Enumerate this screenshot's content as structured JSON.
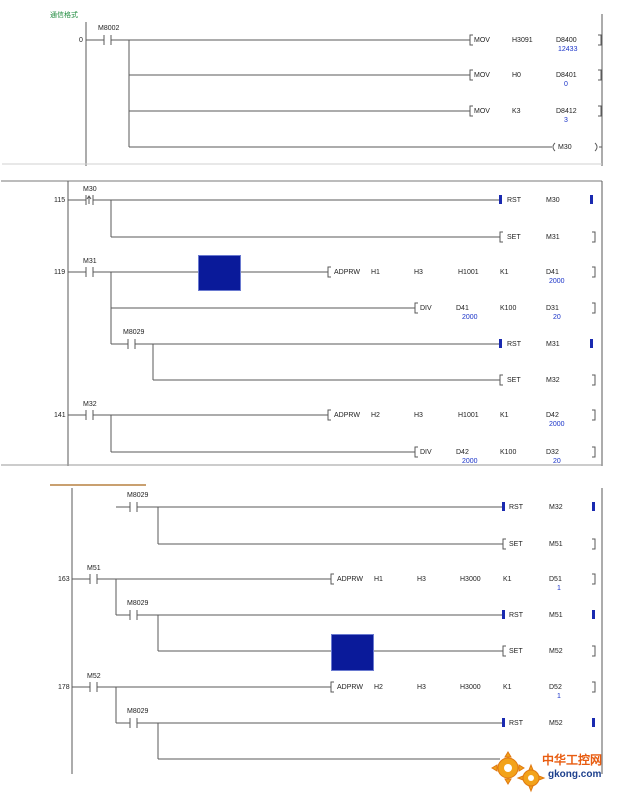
{
  "panel1": {
    "header": "通信格式",
    "step": "0",
    "contact": "M8002",
    "rows": [
      {
        "op": "MOV",
        "a": "H3091",
        "b": "D8400",
        "val": "12433"
      },
      {
        "op": "MOV",
        "a": "H0",
        "b": "D8401",
        "val": "0"
      },
      {
        "op": "MOV",
        "a": "K3",
        "b": "D8412",
        "val": "3"
      }
    ],
    "coil": "M30"
  },
  "panel2": {
    "steps": [
      "115",
      "119",
      "141"
    ],
    "contacts": {
      "m30": "M30",
      "m31": "M31",
      "m8029": "M8029",
      "m32": "M32"
    },
    "rows": {
      "rst_m30": {
        "op": "RST",
        "dev": "M30"
      },
      "set_m31": {
        "op": "SET",
        "dev": "M31"
      },
      "adprw1": {
        "op": "ADPRW",
        "a": "H1",
        "b": "H3",
        "c": "H1001",
        "d": "K1",
        "e": "D41",
        "val": "2000"
      },
      "div1": {
        "op": "DIV",
        "a": "D41",
        "a_val": "2000",
        "b": "K100",
        "c": "D31",
        "c_val": "20"
      },
      "rst_m31": {
        "op": "RST",
        "dev": "M31"
      },
      "set_m32": {
        "op": "SET",
        "dev": "M32"
      },
      "adprw2": {
        "op": "ADPRW",
        "a": "H2",
        "b": "H3",
        "c": "H1001",
        "d": "K1",
        "e": "D42",
        "val": "2000"
      },
      "div2": {
        "op": "DIV",
        "a": "D42",
        "a_val": "2000",
        "b": "K100",
        "c": "D32",
        "c_val": "20"
      }
    }
  },
  "panel3": {
    "steps": [
      "163",
      "178"
    ],
    "contacts": {
      "m8029": "M8029",
      "m51": "M51",
      "m52": "M52"
    },
    "rows": {
      "rst_m32": {
        "op": "RST",
        "dev": "M32"
      },
      "set_m51": {
        "op": "SET",
        "dev": "M51"
      },
      "adprw3": {
        "op": "ADPRW",
        "a": "H1",
        "b": "H3",
        "c": "H3000",
        "d": "K1",
        "e": "D51",
        "val": "1"
      },
      "rst_m51": {
        "op": "RST",
        "dev": "M51"
      },
      "set_m52": {
        "op": "SET",
        "dev": "M52"
      },
      "adprw4": {
        "op": "ADPRW",
        "a": "H2",
        "b": "H3",
        "c": "H3000",
        "d": "K1",
        "e": "D52",
        "val": "1"
      },
      "rst_m52": {
        "op": "RST",
        "dev": "M52"
      }
    }
  },
  "watermark": {
    "cn": "中华工控网",
    "url": "gkong.com"
  },
  "colors": {
    "rail": "#5a5a5a",
    "block": "#0a1a9a",
    "value": "#1a33c8",
    "header": "#1d8a3c",
    "orange": "#e85c10"
  }
}
